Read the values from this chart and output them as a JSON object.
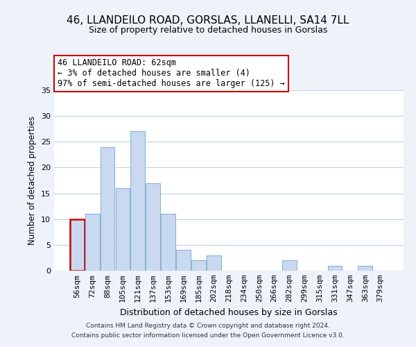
{
  "title": "46, LLANDEILO ROAD, GORSLAS, LLANELLI, SA14 7LL",
  "subtitle": "Size of property relative to detached houses in Gorslas",
  "xlabel": "Distribution of detached houses by size in Gorslas",
  "ylabel": "Number of detached properties",
  "bar_labels": [
    "56sqm",
    "72sqm",
    "88sqm",
    "105sqm",
    "121sqm",
    "137sqm",
    "153sqm",
    "169sqm",
    "185sqm",
    "202sqm",
    "218sqm",
    "234sqm",
    "250sqm",
    "266sqm",
    "282sqm",
    "299sqm",
    "315sqm",
    "331sqm",
    "347sqm",
    "363sqm",
    "379sqm"
  ],
  "bar_values": [
    10,
    11,
    24,
    16,
    27,
    17,
    11,
    4,
    2,
    3,
    0,
    0,
    0,
    0,
    2,
    0,
    0,
    1,
    0,
    1,
    0
  ],
  "bar_color": "#c9d9f0",
  "bar_edge_color": "#8ab4d8",
  "highlight_color": "#cc0000",
  "highlight_bar_index": 0,
  "annotation_text": "46 LLANDEILO ROAD: 62sqm\n← 3% of detached houses are smaller (4)\n97% of semi-detached houses are larger (125) →",
  "ylim": [
    0,
    35
  ],
  "yticks": [
    0,
    5,
    10,
    15,
    20,
    25,
    30,
    35
  ],
  "footer_line1": "Contains HM Land Registry data © Crown copyright and database right 2024.",
  "footer_line2": "Contains public sector information licensed under the Open Government Licence v3.0.",
  "bg_color": "#eef2f9",
  "plot_bg_color": "#ffffff"
}
